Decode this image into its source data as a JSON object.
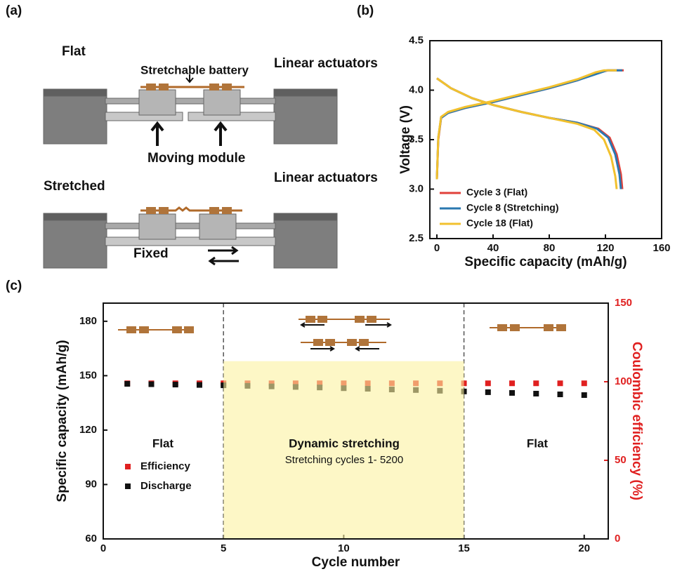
{
  "panel_a": {
    "label": "(a)",
    "flat": "Flat",
    "battery": "Stretchable battery",
    "actuators_top": "Linear actuators",
    "moving": "Moving module",
    "stretched": "Stretched",
    "actuators_bottom": "Linear actuators",
    "fixed": "Fixed"
  },
  "chart_data": [
    {
      "type": "line",
      "panel_label": "(b)",
      "x_label": "Specific capacity (mAh/g)",
      "y_label": "Voltage (V)",
      "xlim": [
        -5,
        160
      ],
      "xticks": [
        0,
        40,
        80,
        120,
        160
      ],
      "ylim": [
        2.5,
        4.5
      ],
      "yticks": [
        2.5,
        {
          "value": 3,
          "label": "3.0"
        },
        3.5,
        {
          "value": 4,
          "label": "4.0"
        },
        4.5
      ],
      "series": [
        {
          "name": "Cycle 3 (Flat)",
          "color": "#e0403a",
          "x": [
            0,
            1,
            3,
            8,
            20,
            40,
            60,
            80,
            100,
            115,
            122,
            133,
            null,
            0,
            10,
            25,
            40,
            60,
            80,
            100,
            115,
            123,
            128,
            131,
            132
          ],
          "values": [
            3.1,
            3.5,
            3.72,
            3.77,
            3.82,
            3.88,
            3.95,
            4.02,
            4.1,
            4.18,
            4.2,
            4.2,
            null,
            4.12,
            4.02,
            3.92,
            3.85,
            3.78,
            3.72,
            3.67,
            3.61,
            3.52,
            3.35,
            3.15,
            3.0
          ]
        },
        {
          "name": "Cycle 8 (Stretching)",
          "color": "#2a78b0",
          "x": [
            0,
            1,
            3,
            8,
            20,
            40,
            60,
            80,
            100,
            115,
            121,
            132,
            null,
            0,
            10,
            25,
            40,
            60,
            80,
            100,
            114,
            122,
            127,
            130,
            131
          ],
          "values": [
            3.1,
            3.52,
            3.72,
            3.77,
            3.82,
            3.88,
            3.95,
            4.02,
            4.1,
            4.17,
            4.2,
            4.2,
            null,
            4.12,
            4.02,
            3.92,
            3.85,
            3.78,
            3.72,
            3.67,
            3.61,
            3.52,
            3.35,
            3.15,
            3.0
          ]
        },
        {
          "name": "Cycle 18 (Flat)",
          "color": "#f2c12e",
          "x": [
            0,
            1,
            3,
            8,
            20,
            40,
            60,
            80,
            100,
            113,
            119,
            128,
            null,
            0,
            10,
            25,
            40,
            60,
            80,
            100,
            112,
            119,
            124,
            127,
            128
          ],
          "values": [
            3.1,
            3.52,
            3.73,
            3.78,
            3.83,
            3.89,
            3.96,
            4.03,
            4.11,
            4.18,
            4.2,
            4.2,
            null,
            4.12,
            4.02,
            3.92,
            3.85,
            3.78,
            3.72,
            3.66,
            3.6,
            3.5,
            3.33,
            3.13,
            3.0
          ]
        }
      ]
    },
    {
      "type": "scatter",
      "panel_label": "(c)",
      "x_label": "Cycle number",
      "y_label": "Specific capacity (mAh/g)",
      "y2_label": "Coulombic efficiency (%)",
      "y2_color": "#e02020",
      "xlim": [
        0,
        21
      ],
      "xticks": [
        0,
        5,
        10,
        15,
        20
      ],
      "ylim": [
        60,
        190
      ],
      "yticks": [
        60,
        90,
        120,
        150,
        180
      ],
      "y2lim": [
        0,
        150
      ],
      "y2ticks": [
        0,
        50,
        100,
        150
      ],
      "vlines": [
        5,
        15
      ],
      "shade": {
        "x": [
          5,
          15
        ],
        "y": [
          60,
          158
        ]
      },
      "region_labels": [
        "Flat",
        "Dynamic stretching",
        "Stretching cycles 1- 5200",
        "Flat"
      ],
      "x": [
        1,
        2,
        3,
        4,
        5,
        6,
        7,
        8,
        9,
        10,
        11,
        12,
        13,
        14,
        15,
        16,
        17,
        18,
        19,
        20
      ],
      "series": [
        {
          "name": "Efficiency",
          "color": "#e02020",
          "axis": "y2",
          "values": [
            99,
            99,
            99,
            99,
            99,
            99,
            99,
            99,
            99,
            99,
            99,
            99,
            99,
            99,
            99,
            99,
            99,
            99,
            99,
            99
          ]
        },
        {
          "name": "Discharge",
          "color": "#111111",
          "values": [
            145.5,
            145.3,
            145.1,
            144.9,
            144.7,
            144.4,
            144.1,
            143.8,
            143.5,
            143.1,
            142.8,
            142.4,
            142.1,
            141.7,
            141.3,
            140.9,
            140.5,
            140.1,
            139.7,
            139.3
          ]
        }
      ]
    }
  ]
}
